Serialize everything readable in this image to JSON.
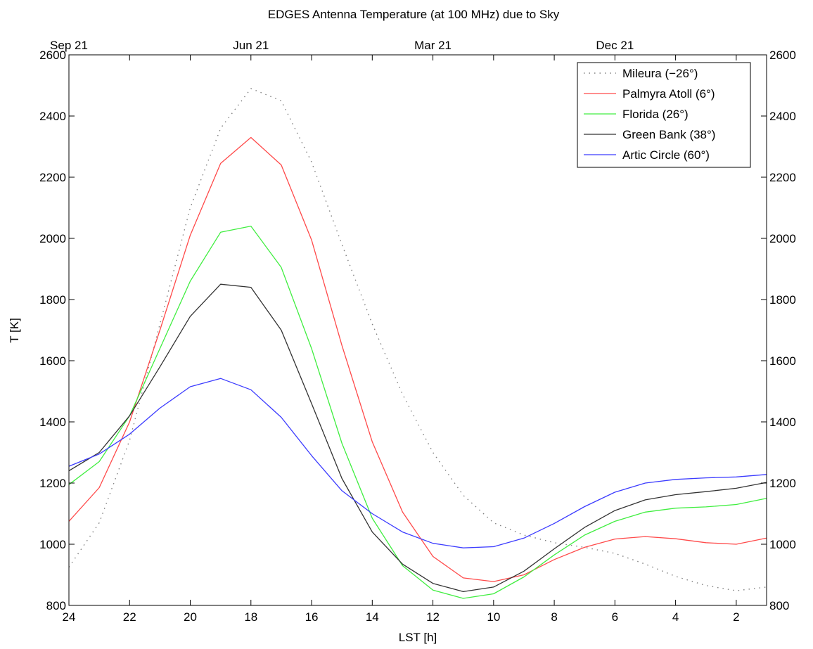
{
  "chart_data": {
    "type": "line",
    "title": "EDGES Antenna Temperature (at 100 MHz) due to Sky",
    "xlabel": "LST [h]",
    "ylabel": "T [K]",
    "xlim": [
      24,
      1
    ],
    "ylim": [
      800,
      2600
    ],
    "x_ticks": [
      24,
      22,
      20,
      18,
      16,
      14,
      12,
      10,
      8,
      6,
      4,
      2
    ],
    "y_ticks": [
      800,
      1000,
      1200,
      1400,
      1600,
      1800,
      2000,
      2200,
      2400,
      2600
    ],
    "top_axis_labels": [
      {
        "label": "Sep 21",
        "x": 24
      },
      {
        "label": "Jun 21",
        "x": 18
      },
      {
        "label": "Mar 21",
        "x": 12
      },
      {
        "label": "Dec 21",
        "x": 6
      }
    ],
    "grid": false,
    "legend_position": "top-right",
    "x": [
      24,
      23,
      22,
      21,
      20,
      19,
      18,
      17,
      16,
      15,
      14,
      13,
      12,
      11,
      10,
      9,
      8,
      7,
      6,
      5,
      4,
      3,
      2,
      1
    ],
    "series": [
      {
        "name": "Mileura (−26°)",
        "color": "#808080",
        "dash": "dotted",
        "values": [
          925,
          1070,
          1340,
          1720,
          2100,
          2360,
          2490,
          2450,
          2250,
          1980,
          1720,
          1490,
          1300,
          1160,
          1070,
          1030,
          1005,
          990,
          970,
          935,
          895,
          865,
          848,
          860
        ]
      },
      {
        "name": "Palmyra Atoll (6°)",
        "color": "#ff4a4a",
        "dash": "solid",
        "values": [
          1075,
          1185,
          1400,
          1700,
          2010,
          2245,
          2330,
          2240,
          1995,
          1650,
          1335,
          1105,
          960,
          890,
          878,
          900,
          950,
          990,
          1017,
          1025,
          1018,
          1005,
          1000,
          1020
        ]
      },
      {
        "name": "Florida (26°)",
        "color": "#40ee40",
        "dash": "solid",
        "values": [
          1195,
          1270,
          1420,
          1640,
          1860,
          2020,
          2040,
          1905,
          1640,
          1330,
          1085,
          930,
          850,
          823,
          838,
          893,
          965,
          1030,
          1075,
          1105,
          1118,
          1122,
          1130,
          1150
        ]
      },
      {
        "name": "Green Bank (38°)",
        "color": "#333333",
        "dash": "solid",
        "values": [
          1240,
          1300,
          1420,
          1580,
          1745,
          1850,
          1840,
          1700,
          1460,
          1215,
          1040,
          935,
          872,
          845,
          860,
          912,
          985,
          1055,
          1110,
          1145,
          1162,
          1172,
          1183,
          1202
        ]
      },
      {
        "name": "Artic Circle (60°)",
        "color": "#3c3cff",
        "dash": "solid",
        "values": [
          1255,
          1295,
          1360,
          1445,
          1515,
          1542,
          1505,
          1415,
          1290,
          1175,
          1100,
          1040,
          1003,
          988,
          992,
          1020,
          1068,
          1123,
          1170,
          1200,
          1212,
          1217,
          1220,
          1228
        ]
      }
    ]
  }
}
